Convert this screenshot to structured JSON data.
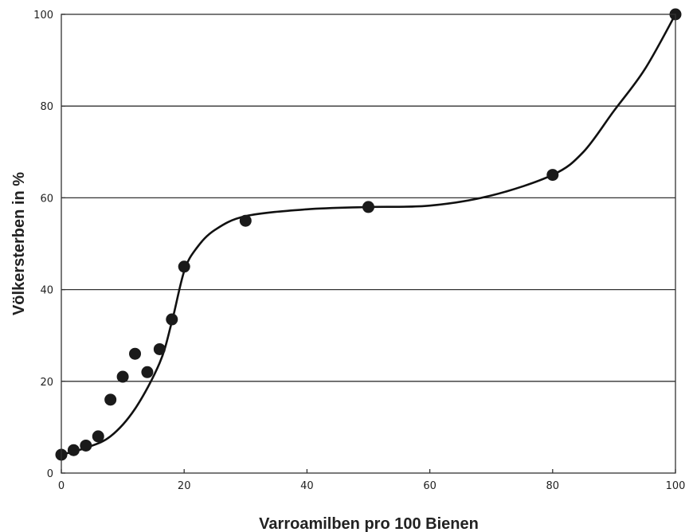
{
  "chart_data": {
    "type": "scatter",
    "title": "",
    "xlabel": "Varroamilben pro 100 Bienen",
    "ylabel": "Völkersterben in %",
    "xlim": [
      0,
      100
    ],
    "ylim": [
      0,
      100
    ],
    "x_ticks": [
      "0",
      "20",
      "40",
      "60",
      "80",
      "100"
    ],
    "y_ticks": [
      "0",
      "20",
      "40",
      "60",
      "80",
      "100"
    ],
    "grid": "horizontal",
    "legend": "none",
    "series": [
      {
        "type": "scatter",
        "x": [
          0,
          2,
          4,
          6,
          8,
          10,
          12,
          14,
          16,
          18,
          20,
          30,
          50,
          80,
          100
        ],
        "y": [
          4,
          5,
          6,
          8,
          16,
          21,
          26,
          22,
          27,
          33.5,
          45,
          55,
          58,
          65,
          100
        ]
      },
      {
        "type": "line",
        "x": [
          0,
          4,
          8,
          12,
          16,
          18,
          20,
          22,
          25,
          30,
          40,
          50,
          60,
          70,
          80,
          85,
          90,
          95,
          100
        ],
        "y": [
          4,
          5.5,
          8,
          14,
          24,
          33,
          44,
          49,
          53,
          56,
          57.5,
          58,
          58.3,
          60.5,
          65,
          70,
          79,
          88,
          100
        ]
      }
    ],
    "colors": {
      "points": "#1a1a1a",
      "curve": "#111111",
      "grid": "#333333",
      "axis": "#333333"
    }
  }
}
